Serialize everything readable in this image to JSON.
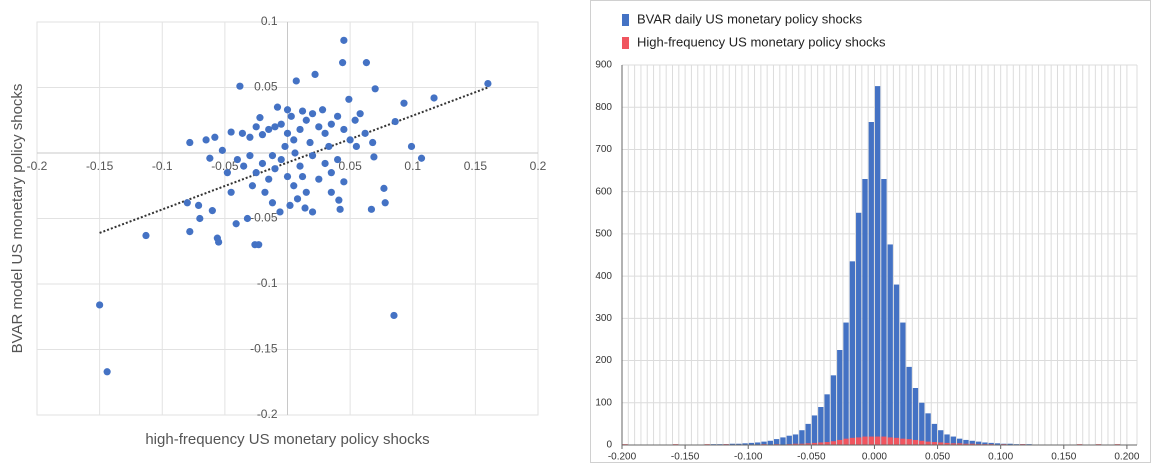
{
  "chart_data": [
    {
      "type": "scatter",
      "x_label": "high-frequency US monetary policy shocks",
      "y_label": "BVAR model US monetary policy shocks",
      "color": "#4472c4",
      "x": [
        0.16,
        -0.15,
        -0.144,
        0.085,
        0.045,
        0.063,
        0.044,
        0.022,
        0.007,
        0.07,
        0.117,
        0.093,
        0.049,
        -0.038,
        -0.113,
        -0.078,
        -0.056,
        -0.055,
        -0.026,
        -0.023,
        -0.041,
        -0.032,
        -0.08,
        -0.071,
        -0.07,
        -0.06,
        -0.078,
        -0.065,
        -0.062,
        0.107,
        0.099,
        0.086,
        0.077,
        0.078,
        0.067,
        0.042,
        0.041,
        0.069,
        0.068,
        0.054,
        -0.045,
        -0.036,
        -0.03,
        -0.025,
        -0.02,
        -0.015,
        -0.01,
        -0.005,
        0.0,
        0.005,
        0.01,
        0.015,
        0.02,
        0.025,
        0.03,
        0.035,
        0.04,
        0.045,
        0.05,
        0.055,
        -0.04,
        -0.035,
        -0.03,
        -0.025,
        -0.02,
        -0.015,
        -0.01,
        -0.005,
        0.0,
        0.005,
        0.01,
        0.015,
        0.02,
        0.025,
        0.03,
        0.035,
        0.04,
        0.045,
        -0.018,
        -0.012,
        -0.006,
        0.002,
        0.008,
        0.014,
        0.02,
        -0.028,
        -0.048,
        -0.052,
        -0.008,
        0.0,
        0.012,
        0.028,
        0.018,
        -0.002,
        0.006,
        -0.012,
        0.003,
        0.033,
        -0.022,
        0.012,
        0.058,
        0.062,
        -0.058,
        -0.045,
        0.035
      ],
      "y": [
        0.053,
        -0.116,
        -0.167,
        -0.124,
        0.086,
        0.069,
        0.069,
        0.06,
        0.055,
        0.049,
        0.042,
        0.038,
        0.041,
        0.051,
        -0.063,
        -0.06,
        -0.065,
        -0.068,
        -0.07,
        -0.07,
        -0.054,
        -0.05,
        -0.038,
        -0.04,
        -0.05,
        -0.044,
        0.008,
        0.01,
        -0.004,
        -0.004,
        0.005,
        0.024,
        -0.027,
        -0.038,
        -0.043,
        -0.043,
        -0.036,
        -0.003,
        0.008,
        0.025,
        0.016,
        0.015,
        0.012,
        0.02,
        0.014,
        0.018,
        0.02,
        0.022,
        0.015,
        0.01,
        0.018,
        0.025,
        0.03,
        0.02,
        0.015,
        0.022,
        0.028,
        0.018,
        0.01,
        0.005,
        -0.005,
        -0.01,
        -0.002,
        -0.015,
        -0.008,
        -0.02,
        -0.012,
        -0.005,
        -0.018,
        -0.025,
        -0.01,
        -0.03,
        -0.002,
        -0.02,
        -0.008,
        -0.015,
        -0.005,
        -0.022,
        -0.03,
        -0.038,
        -0.045,
        -0.04,
        -0.035,
        -0.042,
        -0.045,
        -0.025,
        -0.015,
        0.002,
        0.035,
        0.033,
        0.032,
        0.033,
        0.008,
        0.005,
        0.0,
        -0.002,
        0.028,
        0.005,
        0.027,
        -0.018,
        0.03,
        0.015,
        0.012,
        -0.03,
        -0.03
      ],
      "trendline": {
        "x": [
          -0.15,
          0.16
        ],
        "y": [
          -0.061,
          0.05
        ],
        "color": "#333333"
      },
      "xlim": [
        -0.2,
        0.2
      ],
      "ylim": [
        -0.2,
        0.1
      ],
      "xticks": [
        -0.2,
        -0.15,
        -0.1,
        -0.05,
        0.05,
        0.1,
        0.15,
        0.2
      ],
      "yticks": [
        -0.2,
        -0.15,
        -0.1,
        -0.05,
        0.05,
        0.1
      ],
      "grid": true
    },
    {
      "type": "histogram",
      "bins": [
        -0.2,
        -0.195,
        -0.19,
        -0.185,
        -0.18,
        -0.175,
        -0.17,
        -0.165,
        -0.16,
        -0.155,
        -0.15,
        -0.145,
        -0.14,
        -0.135,
        -0.13,
        -0.125,
        -0.12,
        -0.115,
        -0.11,
        -0.105,
        -0.1,
        -0.095,
        -0.09,
        -0.085,
        -0.08,
        -0.075,
        -0.07,
        -0.065,
        -0.06,
        -0.055,
        -0.05,
        -0.045,
        -0.04,
        -0.035,
        -0.03,
        -0.025,
        -0.02,
        -0.015,
        -0.01,
        -0.005,
        0,
        0.005,
        0.01,
        0.015,
        0.02,
        0.025,
        0.03,
        0.035,
        0.04,
        0.045,
        0.05,
        0.055,
        0.06,
        0.065,
        0.07,
        0.075,
        0.08,
        0.085,
        0.09,
        0.095,
        0.1,
        0.105,
        0.11,
        0.115,
        0.12,
        0.125,
        0.13,
        0.135,
        0.14,
        0.145,
        0.15,
        0.155,
        0.16,
        0.165,
        0.17,
        0.175,
        0.18,
        0.185,
        0.19,
        0.195,
        0.2
      ],
      "series": [
        {
          "name": "BVAR daily US monetary policy shocks",
          "color": "#4472c4",
          "values": [
            1,
            0,
            0,
            1,
            0,
            1,
            0,
            1,
            0,
            1,
            1,
            1,
            1,
            1,
            2,
            2,
            2,
            3,
            3,
            4,
            5,
            6,
            8,
            10,
            14,
            18,
            22,
            25,
            35,
            50,
            70,
            90,
            120,
            165,
            225,
            290,
            435,
            550,
            630,
            765,
            850,
            630,
            475,
            380,
            290,
            185,
            135,
            100,
            75,
            50,
            35,
            25,
            20,
            15,
            12,
            10,
            8,
            6,
            5,
            4,
            3,
            3,
            2,
            2,
            2,
            1,
            1,
            1,
            1,
            1,
            0,
            1,
            0,
            1,
            0,
            1,
            0,
            1,
            0,
            1
          ]
        },
        {
          "name": "High-frequency US monetary policy shocks",
          "color": "#f0555f",
          "values": [
            2,
            0,
            0,
            0,
            0,
            0,
            0,
            0,
            2,
            0,
            0,
            0,
            0,
            2,
            0,
            0,
            2,
            0,
            0,
            0,
            0,
            0,
            2,
            0,
            2,
            0,
            2,
            3,
            3,
            4,
            5,
            6,
            7,
            9,
            12,
            15,
            17,
            18,
            20,
            20,
            20,
            20,
            18,
            17,
            15,
            14,
            12,
            10,
            8,
            7,
            6,
            5,
            4,
            4,
            3,
            3,
            2,
            2,
            2,
            0,
            2,
            0,
            0,
            2,
            0,
            0,
            0,
            0,
            0,
            0,
            0,
            0,
            2,
            0,
            0,
            2,
            0,
            0,
            2,
            0
          ]
        }
      ],
      "xlim": [
        -0.2,
        0.208
      ],
      "ylim": [
        0,
        900
      ],
      "xticks": [
        {
          "value": -0.2,
          "label": "-0.200"
        },
        {
          "value": -0.15,
          "label": "-0.150"
        },
        {
          "value": -0.1,
          "label": "-0.100"
        },
        {
          "value": -0.05,
          "label": "-0.050"
        },
        {
          "value": 0,
          "label": "0.000"
        },
        {
          "value": 0.05,
          "label": "0.050"
        },
        {
          "value": 0.1,
          "label": "0.100"
        },
        {
          "value": 0.15,
          "label": "0.150"
        },
        {
          "value": 0.2,
          "label": "0.200"
        }
      ],
      "yticks": [
        0,
        100,
        200,
        300,
        400,
        500,
        600,
        700,
        800,
        900
      ],
      "legend": "top-left",
      "grid": true
    }
  ]
}
